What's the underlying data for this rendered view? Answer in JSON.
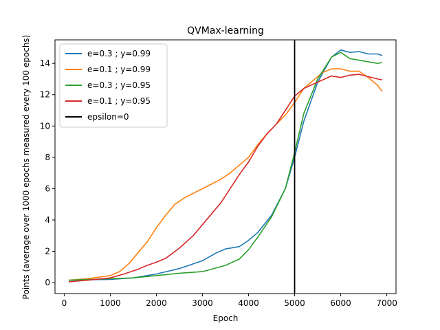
{
  "chart_data": {
    "type": "line",
    "title": "QVMax-learning",
    "xlabel": "Epoch",
    "ylabel": "Points (average over 1000 epochs measured every 100 epochs)",
    "xlim": [
      -200,
      7200
    ],
    "ylim": [
      -0.7,
      15.5
    ],
    "xticks": [
      0,
      1000,
      2000,
      3000,
      4000,
      5000,
      6000,
      7000
    ],
    "yticks": [
      0,
      2,
      4,
      6,
      8,
      10,
      12,
      14
    ],
    "grid": false,
    "legend_position": "top-left",
    "vline": {
      "name": "epsilon=0",
      "x": 5000,
      "color": "#000000"
    },
    "series": [
      {
        "name": "e=0.3 ; y=0.99",
        "color": "#1f77b4",
        "x": [
          100,
          500,
          1000,
          1500,
          2000,
          2500,
          3000,
          3300,
          3500,
          3800,
          4000,
          4200,
          4500,
          4800,
          5000,
          5200,
          5500,
          5800,
          6000,
          6200,
          6400,
          6600,
          6800,
          6900
        ],
        "y": [
          0.15,
          0.18,
          0.2,
          0.3,
          0.55,
          0.9,
          1.4,
          1.9,
          2.15,
          2.3,
          2.7,
          3.2,
          4.3,
          6.0,
          8.0,
          10.3,
          12.8,
          14.4,
          14.85,
          14.7,
          14.75,
          14.6,
          14.6,
          14.5
        ]
      },
      {
        "name": "e=0.1 ; y=0.99",
        "color": "#ff7f0e",
        "x": [
          100,
          500,
          1000,
          1200,
          1400,
          1600,
          1800,
          2000,
          2200,
          2400,
          2600,
          2800,
          3000,
          3200,
          3400,
          3600,
          3800,
          4000,
          4200,
          4400,
          4600,
          4800,
          5000,
          5200,
          5400,
          5600,
          5800,
          6000,
          6200,
          6400,
          6600,
          6800,
          6900
        ],
        "y": [
          0.15,
          0.25,
          0.45,
          0.7,
          1.2,
          1.9,
          2.6,
          3.5,
          4.3,
          5.0,
          5.4,
          5.7,
          6.0,
          6.3,
          6.6,
          7.0,
          7.5,
          8.0,
          8.8,
          9.5,
          10.1,
          10.7,
          11.5,
          12.4,
          12.9,
          13.4,
          13.65,
          13.65,
          13.5,
          13.5,
          13.1,
          12.6,
          12.2
        ]
      },
      {
        "name": "e=0.3 ; y=0.95",
        "color": "#2ca02c",
        "x": [
          100,
          500,
          1000,
          1500,
          2000,
          2500,
          3000,
          3500,
          3800,
          4000,
          4200,
          4500,
          4800,
          5000,
          5200,
          5500,
          5800,
          6000,
          6200,
          6400,
          6600,
          6800,
          6900
        ],
        "y": [
          0.15,
          0.2,
          0.25,
          0.3,
          0.45,
          0.6,
          0.7,
          1.1,
          1.5,
          2.1,
          2.9,
          4.2,
          6.0,
          8.3,
          10.8,
          13.0,
          14.4,
          14.7,
          14.3,
          14.2,
          14.1,
          14.0,
          14.05
        ]
      },
      {
        "name": "e=0.1 ; y=0.95",
        "color": "#d62728",
        "x": [
          100,
          500,
          1000,
          1300,
          1600,
          1800,
          2000,
          2200,
          2500,
          2800,
          3000,
          3200,
          3400,
          3600,
          3800,
          4000,
          4200,
          4400,
          4600,
          4800,
          5000,
          5200,
          5500,
          5800,
          6000,
          6200,
          6400,
          6600,
          6800,
          6900
        ],
        "y": [
          0.05,
          0.15,
          0.3,
          0.55,
          0.85,
          1.1,
          1.3,
          1.55,
          2.2,
          3.0,
          3.7,
          4.4,
          5.1,
          6.0,
          6.9,
          7.7,
          8.7,
          9.5,
          10.1,
          11.0,
          11.9,
          12.4,
          12.8,
          13.2,
          13.1,
          13.25,
          13.3,
          13.15,
          13.0,
          12.95
        ]
      }
    ]
  }
}
